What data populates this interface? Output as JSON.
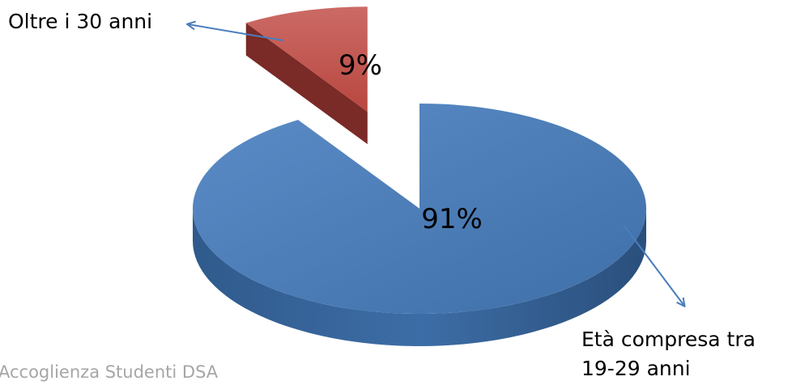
{
  "chart_data": {
    "type": "pie",
    "style": "3d-exploded",
    "slices": [
      {
        "label": "Età compresa tra 19-29 anni",
        "label_lines": [
          "Età compresa tra",
          "19-29 anni"
        ],
        "value": 91,
        "value_label": "91%",
        "color": "#4f81bd"
      },
      {
        "label": "Oltre i 30 anni",
        "label_lines": [
          "Oltre i 30 anni"
        ],
        "value": 9,
        "value_label": "9%",
        "color": "#c0504d"
      }
    ],
    "leader_line_color": "#4a7ebb"
  },
  "footer": {
    "text": "Accoglienza Studenti DSA"
  }
}
